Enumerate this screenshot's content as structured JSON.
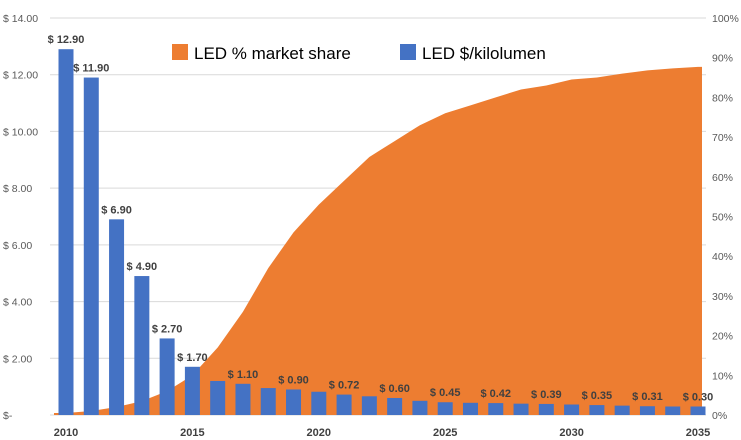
{
  "chart_data": {
    "type": "bar+area",
    "title": "",
    "grid": true,
    "legend_position": "top-center",
    "colors": {
      "bars": "#4472C4",
      "area": "#ED7D31",
      "grid": "#d9d9d9"
    },
    "x": {
      "min": 2010,
      "max": 2035,
      "tick_labels": [
        "2010",
        "2015",
        "2020",
        "2025",
        "2030",
        "2035"
      ]
    },
    "y_left": {
      "min": 0,
      "max": 14,
      "tick_labels": [
        "$-",
        "$ 2.00",
        "$ 4.00",
        "$ 6.00",
        "$ 8.00",
        "$ 10.00",
        "$ 12.00",
        "$ 14.00"
      ]
    },
    "y_right": {
      "min": 0,
      "max": 100,
      "tick_labels": [
        "0%",
        "10%",
        "20%",
        "30%",
        "40%",
        "50%",
        "60%",
        "70%",
        "80%",
        "90%",
        "100%"
      ]
    },
    "series": [
      {
        "name": "LED % market share",
        "kind": "area",
        "axis": "right",
        "x": [
          2010,
          2011,
          2012,
          2013,
          2014,
          2015,
          2016,
          2017,
          2018,
          2019,
          2020,
          2021,
          2022,
          2023,
          2024,
          2025,
          2026,
          2027,
          2028,
          2029,
          2030,
          2031,
          2032,
          2033,
          2034,
          2035
        ],
        "values": [
          0.5,
          1,
          2,
          3.5,
          6,
          10,
          17,
          26,
          37,
          46,
          53,
          59,
          65,
          69,
          73,
          76,
          78,
          80,
          82,
          83,
          84.5,
          85,
          86,
          86.8,
          87.3,
          87.7
        ]
      },
      {
        "name": "LED $/kilolumen",
        "kind": "bar",
        "axis": "left",
        "x": [
          2010,
          2011,
          2012,
          2013,
          2014,
          2015,
          2016,
          2017,
          2018,
          2019,
          2020,
          2021,
          2022,
          2023,
          2024,
          2025,
          2026,
          2027,
          2028,
          2029,
          2030,
          2031,
          2032,
          2033,
          2034,
          2035
        ],
        "values": [
          12.9,
          11.9,
          6.9,
          4.9,
          2.7,
          1.7,
          1.2,
          1.1,
          0.95,
          0.9,
          0.82,
          0.72,
          0.66,
          0.6,
          0.5,
          0.45,
          0.43,
          0.42,
          0.4,
          0.39,
          0.37,
          0.35,
          0.33,
          0.31,
          0.3,
          0.3
        ],
        "data_labels": {
          "2010": "$ 12.90",
          "2011": "$ 11.90",
          "2012": "$ 6.90",
          "2013": "$ 4.90",
          "2014": "$ 2.70",
          "2015": "$ 1.70",
          "2017": "$ 1.10",
          "2019": "$ 0.90",
          "2021": "$ 0.72",
          "2023": "$ 0.60",
          "2025": "$ 0.45",
          "2027": "$ 0.42",
          "2029": "$ 0.39",
          "2031": "$ 0.35",
          "2033": "$ 0.31",
          "2035": "$ 0.30"
        }
      }
    ]
  }
}
